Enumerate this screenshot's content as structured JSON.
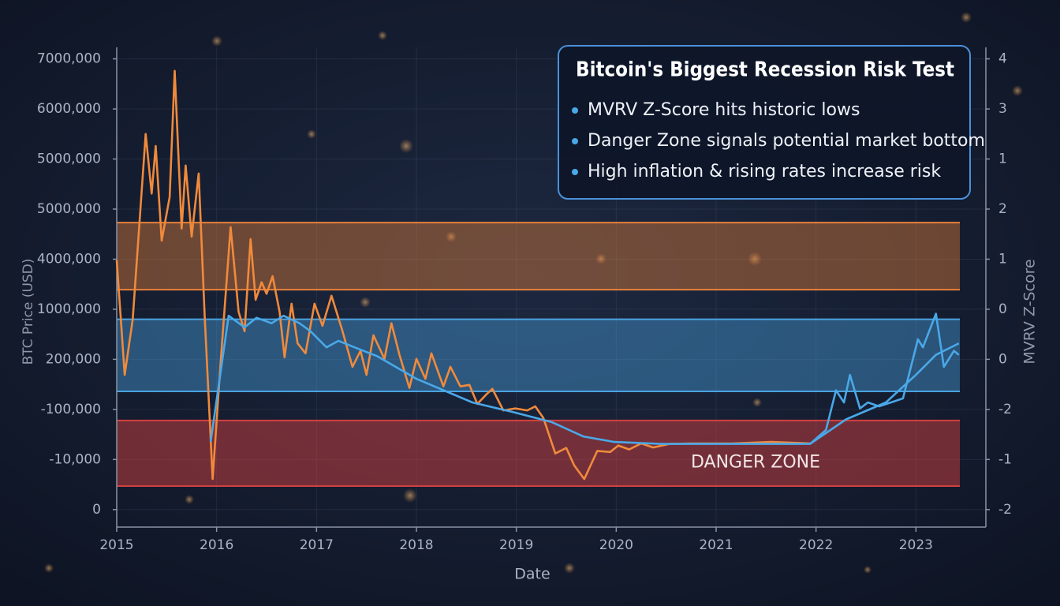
{
  "chart_data": {
    "type": "line",
    "title": "Bitcoin's Biggest Recession Risk Test",
    "notes": [
      "MVRV Z-Score hits historic lows",
      "Danger Zone signals potential market bottom",
      "High inflation & rising rates increase risk"
    ],
    "xlabel": "Date",
    "ylabel": "BTC Price (USD)",
    "y2label": "MVRV Z-Score",
    "xlim": [
      2015,
      2023.7
    ],
    "xticks": [
      2015,
      2016,
      2017,
      2018,
      2019,
      2020,
      2021,
      2022,
      2023
    ],
    "ylim": [
      -0.35,
      9.23
    ],
    "yticks": [
      {
        "value": 9,
        "label": "7000,000"
      },
      {
        "value": 8,
        "label": "6000,000"
      },
      {
        "value": 7,
        "label": "5000,000"
      },
      {
        "value": 6,
        "label": "5000,000"
      },
      {
        "value": 5,
        "label": "4000,000"
      },
      {
        "value": 4,
        "label": "1000,000"
      },
      {
        "value": 3,
        "label": "200,000"
      },
      {
        "value": 2,
        "label": "-100,000"
      },
      {
        "value": 1,
        "label": "-10,000"
      },
      0
    ],
    "y2lim": [
      -0.35,
      9.23
    ],
    "y2ticks": [
      {
        "value": 9,
        "label": "4"
      },
      {
        "value": 8,
        "label": "3"
      },
      {
        "value": 7,
        "label": "1"
      },
      {
        "value": 6,
        "label": "2"
      },
      {
        "value": 5,
        "label": "1"
      },
      {
        "value": 4,
        "label": "0"
      },
      {
        "value": 3,
        "label": "0"
      },
      {
        "value": 2,
        "label": "-2"
      },
      {
        "value": 1,
        "label": "-1"
      },
      {
        "value": 0,
        "label": "-2"
      }
    ],
    "grid": true,
    "bands": [
      {
        "from": 4.39,
        "to": 5.73,
        "color": "#e8803a"
      },
      {
        "from": 2.36,
        "to": 3.8,
        "color": "#4aa3e0"
      },
      {
        "from": 0.47,
        "to": 1.78,
        "color": "#d04040",
        "label": "DANGER ZONE"
      }
    ],
    "series": [
      {
        "color": "#f08a3c",
        "x": [
          2015.0,
          2015.08,
          2015.16,
          2015.29,
          2015.35,
          2015.39,
          2015.45,
          2015.53,
          2015.58,
          2015.65,
          2015.69,
          2015.75,
          2015.82,
          2015.88,
          2015.96,
          2016.04,
          2016.14,
          2016.22,
          2016.28,
          2016.34,
          2016.39,
          2016.45,
          2016.5,
          2016.56,
          2016.63,
          2016.68,
          2016.75,
          2016.81,
          2016.89,
          2016.98,
          2017.06,
          2017.15,
          2017.26,
          2017.36,
          2017.44,
          2017.5,
          2017.57,
          2017.68,
          2017.75,
          2017.83,
          2017.93,
          2018.0,
          2018.09,
          2018.15,
          2018.27,
          2018.34,
          2018.44,
          2018.53,
          2018.61,
          2018.7,
          2018.76,
          2018.87,
          2018.99,
          2019.11,
          2019.19,
          2019.27,
          2019.39,
          2019.5,
          2019.58,
          2019.68,
          2019.81,
          2019.94,
          2020.02,
          2020.13,
          2020.25,
          2020.37,
          2020.53,
          2020.76,
          2021.16,
          2021.55,
          2021.94
        ],
        "values": [
          4.98,
          2.69,
          3.8,
          7.5,
          6.31,
          7.26,
          5.37,
          6.24,
          8.76,
          5.61,
          6.87,
          5.45,
          6.71,
          3.87,
          0.61,
          2.93,
          5.64,
          3.95,
          3.56,
          5.4,
          4.19,
          4.54,
          4.31,
          4.66,
          3.95,
          3.04,
          4.11,
          3.32,
          3.12,
          4.11,
          3.67,
          4.27,
          3.56,
          2.85,
          3.17,
          2.69,
          3.48,
          3.01,
          3.72,
          3.09,
          2.43,
          3.01,
          2.61,
          3.12,
          2.46,
          2.85,
          2.46,
          2.49,
          2.11,
          2.3,
          2.41,
          1.98,
          2.02,
          1.98,
          2.06,
          1.83,
          1.12,
          1.23,
          0.88,
          0.61,
          1.17,
          1.15,
          1.28,
          1.2,
          1.32,
          1.24,
          1.31,
          1.32,
          1.32,
          1.35,
          1.32
        ]
      },
      {
        "color": "#4aa8e8",
        "x": [
          2015.94,
          2016.12,
          2016.28,
          2016.4,
          2016.55,
          2016.67,
          2016.83,
          2016.94,
          2017.1,
          2017.22,
          2017.38,
          2017.61,
          2018.0,
          2018.56,
          2018.96,
          2019.35,
          2019.67,
          2019.98,
          2020.45,
          2021.94,
          2022.1,
          2022.2,
          2022.28,
          2022.34,
          2022.44,
          2022.52,
          2022.63,
          2022.75,
          2022.87,
          2022.94,
          2023.02,
          2023.07,
          2023.2,
          2023.28,
          2023.38,
          2023.43
        ],
        "values": [
          1.35,
          3.87,
          3.64,
          3.83,
          3.72,
          3.87,
          3.72,
          3.56,
          3.24,
          3.37,
          3.24,
          3.06,
          2.61,
          2.14,
          1.95,
          1.75,
          1.46,
          1.35,
          1.31,
          1.31,
          1.59,
          2.38,
          2.14,
          2.69,
          2.02,
          2.14,
          2.06,
          2.14,
          2.22,
          2.77,
          3.4,
          3.24,
          3.91,
          2.85,
          3.17,
          3.09
        ]
      },
      {
        "color": "#4aa8e8",
        "x": [
          2021.94,
          2022.3,
          2022.7,
          2023.0,
          2023.2,
          2023.43
        ],
        "values": [
          1.31,
          1.8,
          2.14,
          2.69,
          3.09,
          3.32
        ]
      }
    ]
  }
}
